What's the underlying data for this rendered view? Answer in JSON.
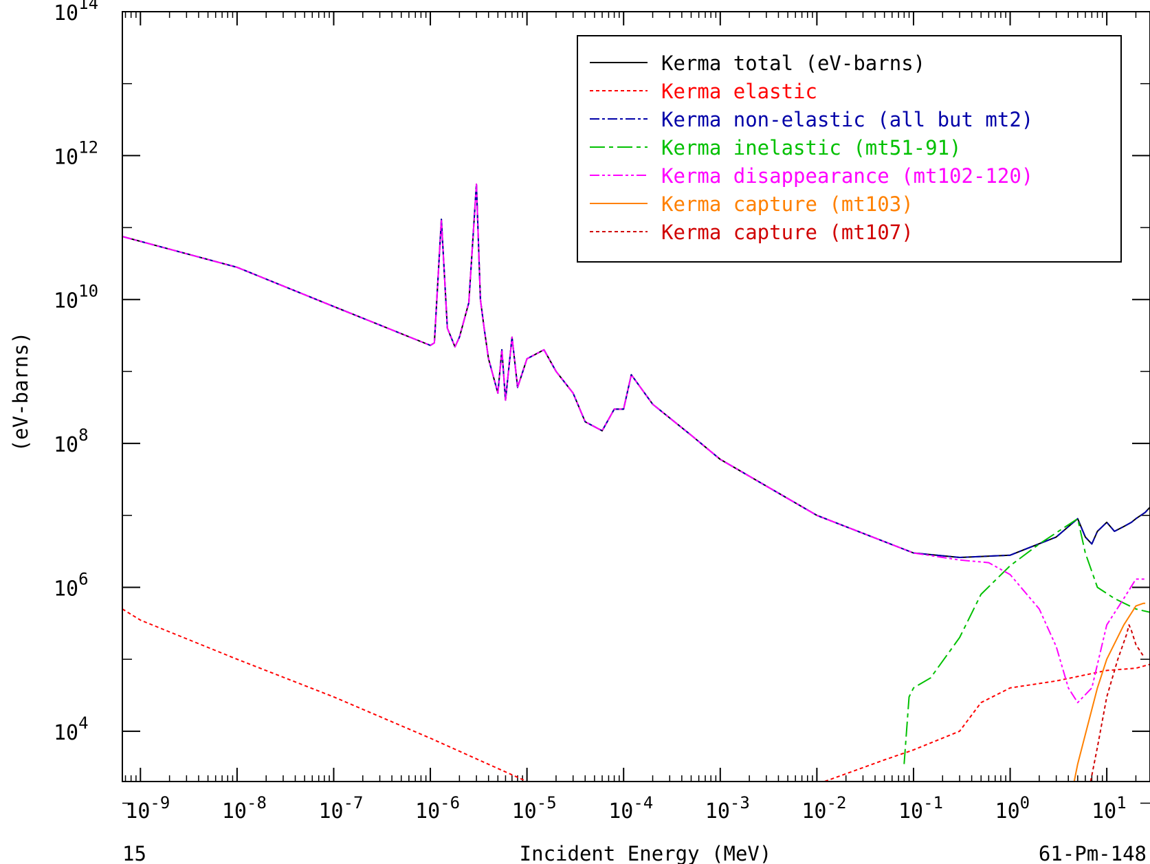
{
  "chart_data": {
    "type": "line",
    "title": "",
    "xlabel": "Incident Energy (MeV)",
    "ylabel": "(eV-barns)",
    "footer_left": "15",
    "footer_right": "61-Pm-148",
    "x_scale": "log",
    "y_scale": "log",
    "xlim": [
      6.5e-10,
      28
    ],
    "ylim": [
      2000,
      100000000000000.0
    ],
    "x_ticks": [
      {
        "base": "10",
        "exp": "-9",
        "value": 1e-09
      },
      {
        "base": "10",
        "exp": "-8",
        "value": 1e-08
      },
      {
        "base": "10",
        "exp": "-7",
        "value": 1e-07
      },
      {
        "base": "10",
        "exp": "-6",
        "value": 1e-06
      },
      {
        "base": "10",
        "exp": "-5",
        "value": 1e-05
      },
      {
        "base": "10",
        "exp": "-4",
        "value": 0.0001
      },
      {
        "base": "10",
        "exp": "-3",
        "value": 0.001
      },
      {
        "base": "10",
        "exp": "-2",
        "value": 0.01
      },
      {
        "base": "10",
        "exp": "-1",
        "value": 0.1
      },
      {
        "base": "10",
        "exp": "0",
        "value": 1
      },
      {
        "base": "10",
        "exp": "1",
        "value": 10
      }
    ],
    "y_ticks": [
      {
        "base": "10",
        "exp": "4",
        "value": 10000.0
      },
      {
        "base": "10",
        "exp": "6",
        "value": 1000000.0
      },
      {
        "base": "10",
        "exp": "8",
        "value": 100000000.0
      },
      {
        "base": "10",
        "exp": "10",
        "value": 10000000000.0
      },
      {
        "base": "10",
        "exp": "12",
        "value": 1000000000000.0
      },
      {
        "base": "10",
        "exp": "14",
        "value": 100000000000000.0
      }
    ],
    "legend_position": "top-right",
    "series": [
      {
        "name": "Kerma total  (eV-barns)",
        "color": "#000000",
        "dash": "solid",
        "x": [
          6.5e-10,
          1e-08,
          1e-07,
          1e-06,
          1.1e-06,
          1.3e-06,
          1.5e-06,
          1.8e-06,
          2e-06,
          2.5e-06,
          3e-06,
          3.3e-06,
          3.6e-06,
          4e-06,
          5e-06,
          5.5e-06,
          6e-06,
          7e-06,
          8e-06,
          1e-05,
          1.5e-05,
          2e-05,
          3e-05,
          4e-05,
          6e-05,
          8e-05,
          0.0001,
          0.00012,
          0.0002,
          0.0005,
          0.001,
          0.01,
          0.1,
          0.3,
          1,
          3,
          5,
          6,
          7,
          8,
          10,
          12,
          15,
          18,
          20,
          25,
          28
        ],
        "y": [
          75000000000.0,
          28000000000.0,
          8000000000.0,
          2300000000.0,
          2500000000.0,
          130000000000.0,
          4000000000.0,
          2200000000.0,
          3000000000.0,
          9000000000.0,
          400000000000.0,
          10000000000.0,
          4000000000.0,
          1500000000.0,
          500000000.0,
          2000000000.0,
          400000000.0,
          3000000000.0,
          600000000.0,
          1500000000.0,
          2000000000.0,
          1000000000.0,
          500000000.0,
          200000000.0,
          150000000.0,
          300000000.0,
          300000000.0,
          900000000.0,
          350000000.0,
          130000000.0,
          60000000.0,
          10000000.0,
          3000000.0,
          2600000.0,
          2800000.0,
          5000000.0,
          9000000.0,
          5000000.0,
          4000000.0,
          6000000.0,
          8000000.0,
          6000000.0,
          7000000.0,
          8000000.0,
          9000000.0,
          11000000.0,
          13000000.0
        ]
      },
      {
        "name": "Kerma elastic",
        "color": "#ff0000",
        "dash": "5,4",
        "x": [
          6.5e-10,
          1e-09,
          1e-08,
          1e-07,
          1e-06,
          1e-05,
          1.2e-05,
          0.012,
          0.05,
          0.1,
          0.3,
          0.5,
          1,
          3,
          10,
          20,
          28
        ],
        "y": [
          500000,
          350000,
          100000,
          30000,
          8000,
          2000,
          1500,
          2000,
          4000,
          5500,
          10000,
          25000,
          40000,
          50000,
          70000,
          75000,
          85000
        ]
      },
      {
        "name": "Kerma non-elastic (all but mt2)",
        "color": "#0000a8",
        "dash": "14,4,4,4",
        "x": [
          6.5e-10,
          1e-08,
          1e-07,
          1e-06,
          1.1e-06,
          1.3e-06,
          1.5e-06,
          1.8e-06,
          2e-06,
          2.5e-06,
          3e-06,
          3.3e-06,
          3.6e-06,
          4e-06,
          5e-06,
          5.5e-06,
          6e-06,
          7e-06,
          8e-06,
          1e-05,
          1.5e-05,
          2e-05,
          3e-05,
          4e-05,
          6e-05,
          8e-05,
          0.0001,
          0.00012,
          0.0002,
          0.0005,
          0.001,
          0.01,
          0.1,
          0.3,
          1,
          3,
          5,
          6,
          7,
          8,
          10,
          12,
          15,
          18,
          20,
          25,
          28
        ],
        "y": [
          75000000000.0,
          28000000000.0,
          8000000000.0,
          2300000000.0,
          2500000000.0,
          130000000000.0,
          4000000000.0,
          2200000000.0,
          3000000000.0,
          9000000000.0,
          400000000000.0,
          10000000000.0,
          4000000000.0,
          1500000000.0,
          500000000.0,
          2000000000.0,
          400000000.0,
          3000000000.0,
          600000000.0,
          1500000000.0,
          2000000000.0,
          1000000000.0,
          500000000.0,
          200000000.0,
          150000000.0,
          300000000.0,
          300000000.0,
          900000000.0,
          350000000.0,
          130000000.0,
          60000000.0,
          10000000.0,
          3000000.0,
          2600000.0,
          2800000.0,
          5000000.0,
          9000000.0,
          5000000.0,
          4000000.0,
          6000000.0,
          8000000.0,
          6000000.0,
          7000000.0,
          8000000.0,
          9000000.0,
          11000000.0,
          13000000.0
        ]
      },
      {
        "name": "Kerma inelastic (mt51-91)",
        "color": "#00c000",
        "dash": "22,6,6,6",
        "x": [
          0.08,
          0.09,
          0.1,
          0.15,
          0.3,
          0.5,
          1,
          2,
          5,
          6,
          8,
          12,
          20,
          28
        ],
        "y": [
          3500,
          30000,
          40000,
          55000,
          200000,
          800000,
          2000000,
          4000000,
          9000000,
          3000000,
          1000000,
          700000,
          500000,
          450000
        ]
      },
      {
        "name": "Kerma disappearance (mt102-120)",
        "color": "#ff00ff",
        "dash": "14,4,4,4,4,4",
        "x": [
          6.5e-10,
          1e-08,
          1e-07,
          1e-06,
          1.1e-06,
          1.3e-06,
          1.5e-06,
          1.8e-06,
          2e-06,
          2.5e-06,
          3e-06,
          3.3e-06,
          3.6e-06,
          4e-06,
          5e-06,
          5.5e-06,
          6e-06,
          7e-06,
          8e-06,
          1e-05,
          1.5e-05,
          2e-05,
          3e-05,
          4e-05,
          6e-05,
          8e-05,
          0.0001,
          0.00012,
          0.0002,
          0.0005,
          0.001,
          0.01,
          0.1,
          0.3,
          0.6,
          1,
          2,
          3,
          4,
          5,
          7,
          10,
          15,
          20,
          25
        ],
        "y": [
          75000000000.0,
          28000000000.0,
          8000000000.0,
          2300000000.0,
          2500000000.0,
          130000000000.0,
          4000000000.0,
          2200000000.0,
          3000000000.0,
          9000000000.0,
          400000000000.0,
          10000000000.0,
          4000000000.0,
          1500000000.0,
          500000000.0,
          2000000000.0,
          400000000.0,
          3000000000.0,
          600000000.0,
          1500000000.0,
          2000000000.0,
          1000000000.0,
          500000000.0,
          200000000.0,
          150000000.0,
          300000000.0,
          300000000.0,
          900000000.0,
          350000000.0,
          130000000.0,
          60000000.0,
          10000000.0,
          3000000.0,
          2400000.0,
          2200000.0,
          1500000.0,
          500000,
          150000,
          40000,
          25000,
          40000,
          300000,
          700000,
          1300000,
          1300000
        ]
      },
      {
        "name": "Kerma capture (mt103)",
        "color": "#ff8000",
        "dash": "solid",
        "x": [
          4.6,
          5,
          6,
          8,
          10,
          15,
          20,
          24,
          25
        ],
        "y": [
          2000,
          3500,
          9000,
          40000,
          100000,
          300000,
          550000,
          600000,
          600000
        ]
      },
      {
        "name": "Kerma capture (mt107)",
        "color": "#d00000",
        "dash": "5,4",
        "x": [
          6.8,
          8,
          10,
          13,
          16,
          17,
          18,
          20,
          24
        ],
        "y": [
          2000,
          6000,
          30000,
          100000,
          220000,
          300000,
          250000,
          160000,
          110000
        ]
      }
    ]
  }
}
